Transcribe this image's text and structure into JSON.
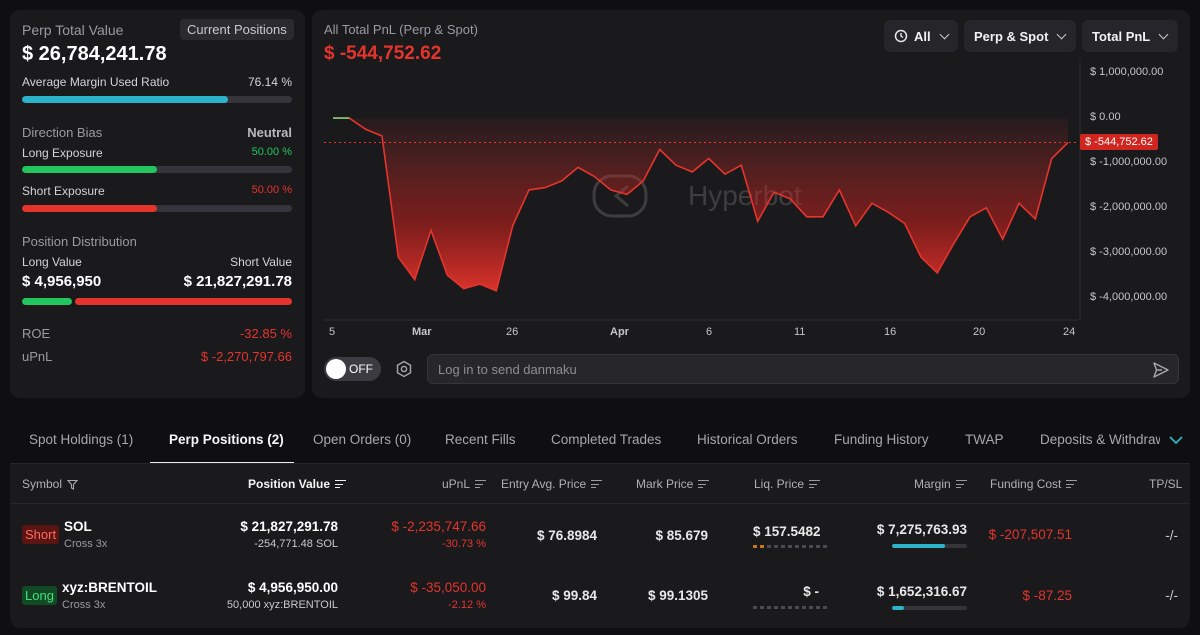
{
  "summary": {
    "perp_total_label": "Perp Total Value",
    "current_positions_btn": "Current Positions",
    "perp_total_value": "$ 26,784,241.78",
    "avg_margin_label": "Average Margin Used Ratio",
    "avg_margin_value": "76.14 %",
    "avg_margin_ratio": 0.7614,
    "direction_bias_label": "Direction Bias",
    "direction_bias_value": "Neutral",
    "long_exposure_label": "Long Exposure",
    "long_exposure_value": "50.00 %",
    "long_exposure_ratio": 0.5,
    "short_exposure_label": "Short Exposure",
    "short_exposure_value": "50.00 %",
    "short_exposure_ratio": 0.5,
    "position_distribution_label": "Position Distribution",
    "long_value_label": "Long Value",
    "short_value_label": "Short Value",
    "long_value": "$ 4,956,950",
    "short_value": "$ 21,827,291.78",
    "long_share": 0.185,
    "roe_label": "ROE",
    "roe_value": "-32.85 %",
    "upnl_label": "uPnL",
    "upnl_value": "$ -2,270,797.66"
  },
  "chart_panel": {
    "title": "All Total PnL (Perp & Spot)",
    "value": "$ -544,752.62",
    "filter_time": "All",
    "filter_market": "Perp & Spot",
    "filter_metric": "Total PnL",
    "watermark": "Hyperbot",
    "danmaku_toggle": "OFF",
    "danmaku_placeholder": "Log in to send danmaku"
  },
  "chart_data": {
    "type": "area",
    "title": "All Total PnL (Perp & Spot)",
    "x_tick_labels": [
      "5",
      "Mar",
      "26",
      "Apr",
      "6",
      "11",
      "16",
      "20",
      "24"
    ],
    "y_tick_labels": [
      "$ 1,000,000.00",
      "$ 0.00",
      "$ -1,000,000.00",
      "$ -2,000,000.00",
      "$ -3,000,000.00",
      "$ -4,000,000.00"
    ],
    "ylim": [
      -4500000,
      1250000
    ],
    "current_label": "$ -544,752.62",
    "current_value": -544752.62,
    "series": [
      {
        "values": [
          0,
          0,
          -250000,
          -400000,
          -3100000,
          -3600000,
          -2500000,
          -3500000,
          -3800000,
          -3700000,
          -3850000,
          -2400000,
          -1600000,
          -1550000,
          -1400000,
          -1100000,
          -1300000,
          -1600000,
          -1700000,
          -1400000,
          -700000,
          -1050000,
          -1200000,
          -900000,
          -1250000,
          -1050000,
          -2300000,
          -1650000,
          -1800000,
          -2200000,
          -2200000,
          -1600000,
          -2400000,
          -1900000,
          -2100000,
          -2350000,
          -3100000,
          -3450000,
          -2800000,
          -2200000,
          -2000000,
          -2700000,
          -1900000,
          -2250000,
          -900000,
          -544752.62
        ]
      }
    ]
  },
  "tabs": [
    {
      "label": "Spot Holdings (1)",
      "name": "tab-spot-holdings"
    },
    {
      "label": "Perp Positions (2)",
      "name": "tab-perp-positions"
    },
    {
      "label": "Open Orders (0)",
      "name": "tab-open-orders"
    },
    {
      "label": "Recent Fills",
      "name": "tab-recent-fills"
    },
    {
      "label": "Completed Trades",
      "name": "tab-completed-trades"
    },
    {
      "label": "Historical Orders",
      "name": "tab-historical-orders"
    },
    {
      "label": "Funding History",
      "name": "tab-funding-history"
    },
    {
      "label": "TWAP",
      "name": "tab-twap"
    },
    {
      "label": "Deposits & Withdraw",
      "name": "tab-deposits-withdraw"
    }
  ],
  "table": {
    "headers": {
      "symbol": "Symbol",
      "position_value": "Position Value",
      "upnl": "uPnL",
      "entry": "Entry Avg. Price",
      "mark": "Mark Price",
      "liq": "Liq. Price",
      "margin": "Margin",
      "funding": "Funding Cost",
      "tpsl": "TP/SL"
    },
    "rows": [
      {
        "side": "Short",
        "symbol": "SOL",
        "mode": "Cross 3x",
        "position_value": "$ 21,827,291.78",
        "position_size": "-254,771.48 SOL",
        "upnl": "$ -2,235,747.66",
        "upnl_pct": "-30.73 %",
        "entry": "$ 76.8984",
        "mark": "$ 85.679",
        "liq": "$ 157.5482",
        "liq_level": 2,
        "margin": "$ 7,275,763.93",
        "margin_ratio": 0.7,
        "funding": "$ -207,507.51",
        "tpsl": "-/-"
      },
      {
        "side": "Long",
        "symbol": "xyz:BRENTOIL",
        "mode": "Cross 3x",
        "position_value": "$ 4,956,950.00",
        "position_size": "50,000 xyz:BRENTOIL",
        "upnl": "$ -35,050.00",
        "upnl_pct": "-2.12 %",
        "entry": "$ 99.84",
        "mark": "$ 99.1305",
        "liq": "$ -",
        "liq_level": 0,
        "margin": "$ 1,652,316.67",
        "margin_ratio": 0.16,
        "funding": "$ -87.25",
        "tpsl": "-/-"
      }
    ]
  },
  "colors": {
    "accent_cyan": "#2bb3c8",
    "green": "#22c55e",
    "red": "#e5342c"
  }
}
